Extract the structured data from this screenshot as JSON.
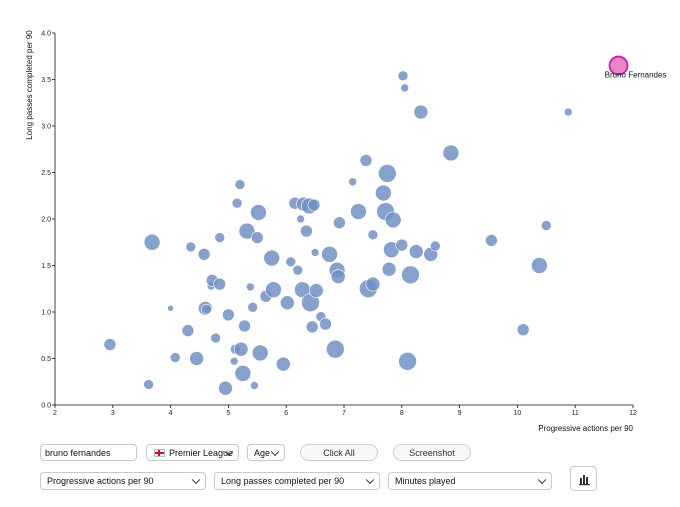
{
  "chart_data": {
    "type": "scatter",
    "xlabel": "Progressive actions per 90",
    "ylabel": "Long passes completed per 90",
    "xlim": [
      2,
      12
    ],
    "ylim": [
      0,
      4
    ],
    "xticks": [
      2,
      3,
      4,
      5,
      6,
      7,
      8,
      9,
      10,
      11,
      12
    ],
    "yticks": [
      "0.0",
      "0.5",
      "1.0",
      "1.5",
      "2.0",
      "2.5",
      "3.0",
      "3.5",
      "4.0"
    ],
    "size_metric": "Minutes played",
    "colors": {
      "points": "#7091c3",
      "highlight_fill": "#ee82c6",
      "highlight_stroke": "#c026a8"
    },
    "highlight": {
      "label": "Bruno Fernandes",
      "x": 11.75,
      "y": 3.65,
      "size": 9
    },
    "points": [
      [
        2.95,
        0.65,
        6
      ],
      [
        3.62,
        0.22,
        5
      ],
      [
        3.68,
        1.75,
        8
      ],
      [
        4.0,
        1.04,
        3
      ],
      [
        4.08,
        0.51,
        5
      ],
      [
        4.3,
        0.8,
        6
      ],
      [
        4.35,
        1.7,
        5
      ],
      [
        4.45,
        0.5,
        7
      ],
      [
        4.58,
        1.62,
        6
      ],
      [
        4.6,
        1.04,
        7
      ],
      [
        4.62,
        1.03,
        5
      ],
      [
        4.7,
        1.28,
        4
      ],
      [
        4.72,
        1.34,
        6
      ],
      [
        4.78,
        0.72,
        5
      ],
      [
        4.85,
        1.8,
        5
      ],
      [
        4.85,
        1.3,
        6
      ],
      [
        4.95,
        0.18,
        7
      ],
      [
        5.0,
        0.97,
        6
      ],
      [
        5.1,
        0.47,
        4
      ],
      [
        5.12,
        0.6,
        5
      ],
      [
        5.15,
        2.17,
        5
      ],
      [
        5.2,
        2.37,
        5
      ],
      [
        5.22,
        0.6,
        7
      ],
      [
        5.25,
        0.34,
        8
      ],
      [
        5.28,
        0.85,
        6
      ],
      [
        5.32,
        1.87,
        8
      ],
      [
        5.38,
        1.27,
        4
      ],
      [
        5.42,
        1.05,
        5
      ],
      [
        5.45,
        0.21,
        4
      ],
      [
        5.5,
        1.8,
        6
      ],
      [
        5.52,
        2.07,
        8
      ],
      [
        5.55,
        0.56,
        8
      ],
      [
        5.65,
        1.17,
        6
      ],
      [
        5.75,
        1.58,
        8
      ],
      [
        5.78,
        1.24,
        8
      ],
      [
        5.95,
        0.44,
        7
      ],
      [
        6.02,
        1.1,
        7
      ],
      [
        6.08,
        1.54,
        5
      ],
      [
        6.15,
        2.17,
        6
      ],
      [
        6.2,
        1.45,
        5
      ],
      [
        6.25,
        2.0,
        4
      ],
      [
        6.28,
        1.24,
        8
      ],
      [
        6.3,
        2.16,
        7
      ],
      [
        6.35,
        1.87,
        6
      ],
      [
        6.4,
        2.14,
        8
      ],
      [
        6.42,
        1.1,
        9
      ],
      [
        6.45,
        0.84,
        6
      ],
      [
        6.48,
        2.15,
        6
      ],
      [
        6.5,
        1.64,
        4
      ],
      [
        6.52,
        1.23,
        7
      ],
      [
        6.6,
        0.95,
        5
      ],
      [
        6.68,
        0.87,
        6
      ],
      [
        6.75,
        1.62,
        8
      ],
      [
        6.85,
        0.6,
        9
      ],
      [
        6.88,
        1.45,
        8
      ],
      [
        6.9,
        1.38,
        7
      ],
      [
        6.92,
        1.96,
        6
      ],
      [
        7.15,
        2.4,
        4
      ],
      [
        7.25,
        2.08,
        8
      ],
      [
        7.38,
        2.63,
        6
      ],
      [
        7.42,
        1.25,
        9
      ],
      [
        7.5,
        1.3,
        7
      ],
      [
        7.5,
        1.83,
        5
      ],
      [
        7.68,
        2.28,
        8
      ],
      [
        7.72,
        2.08,
        9
      ],
      [
        7.75,
        2.49,
        9
      ],
      [
        7.78,
        1.46,
        7
      ],
      [
        7.82,
        1.67,
        8
      ],
      [
        7.85,
        1.99,
        8
      ],
      [
        8.0,
        1.72,
        6
      ],
      [
        8.02,
        3.54,
        5
      ],
      [
        8.05,
        3.41,
        4
      ],
      [
        8.1,
        0.47,
        9
      ],
      [
        8.15,
        1.4,
        9
      ],
      [
        8.25,
        1.65,
        7
      ],
      [
        8.33,
        3.15,
        7
      ],
      [
        8.5,
        1.62,
        7
      ],
      [
        8.58,
        1.71,
        5
      ],
      [
        8.85,
        2.71,
        8
      ],
      [
        9.55,
        1.77,
        6
      ],
      [
        10.1,
        0.81,
        6
      ],
      [
        10.38,
        1.5,
        8
      ],
      [
        10.5,
        1.93,
        5
      ],
      [
        10.88,
        3.15,
        4
      ]
    ]
  },
  "controls": {
    "search_value": "bruno fernandes",
    "league": "Premier League",
    "age": "Age",
    "click_all": "Click All",
    "screenshot": "Screenshot",
    "x_metric": "Progressive actions per 90",
    "y_metric": "Long passes completed per 90",
    "size_metric": "Minutes played",
    "chart_icon": "bar-chart-icon"
  }
}
